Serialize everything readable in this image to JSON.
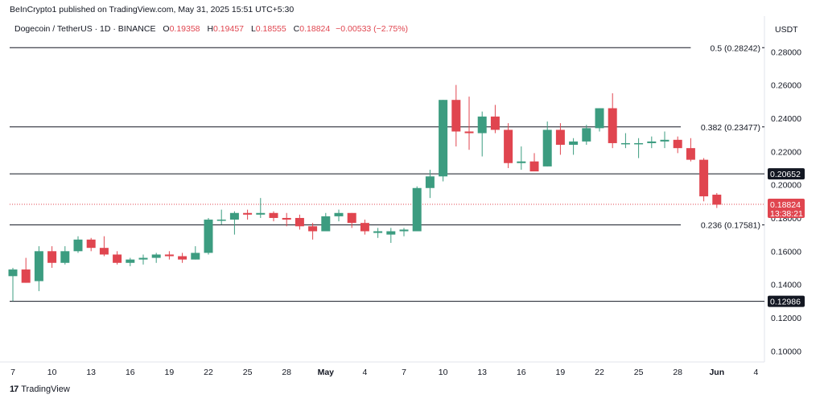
{
  "header": {
    "publisher": "BeInCrypto1 published on TradingView.com, May 31, 2025 15:51 UTC+5:30",
    "symbol": "Dogecoin / TetherUS · 1D · BINANCE",
    "o_label": "O",
    "o_value": "0.19358",
    "h_label": "H",
    "h_value": "0.19457",
    "l_label": "L",
    "l_value": "0.18555",
    "c_label": "C",
    "c_value": "0.18824",
    "change": "−0.00533 (−2.75%)",
    "currency": "USDT"
  },
  "footer": {
    "brand": "TradingView"
  },
  "colors": {
    "up": "#26a69a",
    "up_body": "#3c9c80",
    "down": "#e0454f",
    "line": "#131722",
    "price_line": "#e0454f"
  },
  "chart_data": {
    "type": "candlestick",
    "ylim": [
      0.09,
      0.29
    ],
    "y_ticks": [
      "0.28000",
      "0.26000",
      "0.24000",
      "0.22000",
      "0.20000",
      "0.18000",
      "0.16000",
      "0.14000",
      "0.12000",
      "0.10000"
    ],
    "y_tick_values": [
      0.28,
      0.26,
      0.24,
      0.22,
      0.2,
      0.18,
      0.16,
      0.14,
      0.12,
      0.1
    ],
    "x_tick_labels": [
      "7",
      "10",
      "13",
      "16",
      "19",
      "22",
      "25",
      "28",
      "May",
      "4",
      "7",
      "10",
      "13",
      "16",
      "19",
      "22",
      "25",
      "28",
      "Jun",
      "4"
    ],
    "x_tick_index": [
      0,
      3,
      6,
      9,
      12,
      15,
      18,
      21,
      24,
      27,
      30,
      33,
      36,
      39,
      42,
      45,
      48,
      51,
      54,
      57
    ],
    "fib_levels": [
      {
        "label": "0.5 (0.28242)",
        "value": 0.28242
      },
      {
        "label": "0.382 (0.23477)",
        "value": 0.23477
      },
      {
        "label": "0.236 (0.17581)",
        "value": 0.17581
      }
    ],
    "horizontal_lines": [
      {
        "label": "0.20652",
        "value": 0.20652
      },
      {
        "label": "0.12986",
        "value": 0.12986
      }
    ],
    "last_price": {
      "label": "0.18824",
      "countdown": "13:38:21",
      "value": 0.18824
    },
    "candles": [
      {
        "o": 0.145,
        "h": 0.15,
        "l": 0.13,
        "c": 0.149
      },
      {
        "o": 0.149,
        "h": 0.156,
        "l": 0.141,
        "c": 0.141
      },
      {
        "o": 0.142,
        "h": 0.163,
        "l": 0.136,
        "c": 0.16
      },
      {
        "o": 0.16,
        "h": 0.163,
        "l": 0.15,
        "c": 0.153
      },
      {
        "o": 0.153,
        "h": 0.163,
        "l": 0.152,
        "c": 0.16
      },
      {
        "o": 0.16,
        "h": 0.169,
        "l": 0.159,
        "c": 0.167
      },
      {
        "o": 0.167,
        "h": 0.168,
        "l": 0.16,
        "c": 0.162
      },
      {
        "o": 0.162,
        "h": 0.169,
        "l": 0.157,
        "c": 0.158
      },
      {
        "o": 0.158,
        "h": 0.16,
        "l": 0.152,
        "c": 0.153
      },
      {
        "o": 0.153,
        "h": 0.156,
        "l": 0.151,
        "c": 0.155
      },
      {
        "o": 0.155,
        "h": 0.158,
        "l": 0.152,
        "c": 0.156
      },
      {
        "o": 0.156,
        "h": 0.159,
        "l": 0.153,
        "c": 0.158
      },
      {
        "o": 0.158,
        "h": 0.16,
        "l": 0.155,
        "c": 0.157
      },
      {
        "o": 0.157,
        "h": 0.159,
        "l": 0.153,
        "c": 0.155
      },
      {
        "o": 0.155,
        "h": 0.163,
        "l": 0.155,
        "c": 0.159
      },
      {
        "o": 0.159,
        "h": 0.18,
        "l": 0.158,
        "c": 0.179
      },
      {
        "o": 0.179,
        "h": 0.185,
        "l": 0.176,
        "c": 0.179
      },
      {
        "o": 0.179,
        "h": 0.184,
        "l": 0.17,
        "c": 0.183
      },
      {
        "o": 0.183,
        "h": 0.185,
        "l": 0.179,
        "c": 0.182
      },
      {
        "o": 0.182,
        "h": 0.192,
        "l": 0.18,
        "c": 0.183
      },
      {
        "o": 0.183,
        "h": 0.184,
        "l": 0.178,
        "c": 0.18
      },
      {
        "o": 0.18,
        "h": 0.183,
        "l": 0.175,
        "c": 0.179
      },
      {
        "o": 0.18,
        "h": 0.182,
        "l": 0.173,
        "c": 0.175
      },
      {
        "o": 0.175,
        "h": 0.177,
        "l": 0.167,
        "c": 0.172
      },
      {
        "o": 0.172,
        "h": 0.183,
        "l": 0.172,
        "c": 0.181
      },
      {
        "o": 0.181,
        "h": 0.185,
        "l": 0.178,
        "c": 0.183
      },
      {
        "o": 0.183,
        "h": 0.183,
        "l": 0.174,
        "c": 0.177
      },
      {
        "o": 0.177,
        "h": 0.179,
        "l": 0.17,
        "c": 0.172
      },
      {
        "o": 0.171,
        "h": 0.174,
        "l": 0.168,
        "c": 0.172
      },
      {
        "o": 0.17,
        "h": 0.174,
        "l": 0.165,
        "c": 0.172
      },
      {
        "o": 0.172,
        "h": 0.174,
        "l": 0.169,
        "c": 0.173
      },
      {
        "o": 0.172,
        "h": 0.199,
        "l": 0.172,
        "c": 0.198
      },
      {
        "o": 0.198,
        "h": 0.209,
        "l": 0.192,
        "c": 0.205
      },
      {
        "o": 0.205,
        "h": 0.251,
        "l": 0.202,
        "c": 0.251
      },
      {
        "o": 0.251,
        "h": 0.26,
        "l": 0.223,
        "c": 0.232
      },
      {
        "o": 0.232,
        "h": 0.253,
        "l": 0.221,
        "c": 0.231
      },
      {
        "o": 0.231,
        "h": 0.244,
        "l": 0.217,
        "c": 0.241
      },
      {
        "o": 0.241,
        "h": 0.248,
        "l": 0.231,
        "c": 0.233
      },
      {
        "o": 0.233,
        "h": 0.237,
        "l": 0.21,
        "c": 0.213
      },
      {
        "o": 0.213,
        "h": 0.223,
        "l": 0.209,
        "c": 0.214
      },
      {
        "o": 0.214,
        "h": 0.219,
        "l": 0.209,
        "c": 0.208
      },
      {
        "o": 0.211,
        "h": 0.238,
        "l": 0.211,
        "c": 0.233
      },
      {
        "o": 0.233,
        "h": 0.237,
        "l": 0.218,
        "c": 0.224
      },
      {
        "o": 0.224,
        "h": 0.228,
        "l": 0.218,
        "c": 0.226
      },
      {
        "o": 0.226,
        "h": 0.236,
        "l": 0.224,
        "c": 0.234
      },
      {
        "o": 0.234,
        "h": 0.246,
        "l": 0.232,
        "c": 0.246
      },
      {
        "o": 0.246,
        "h": 0.255,
        "l": 0.222,
        "c": 0.225
      },
      {
        "o": 0.225,
        "h": 0.231,
        "l": 0.222,
        "c": 0.225
      },
      {
        "o": 0.225,
        "h": 0.228,
        "l": 0.216,
        "c": 0.225
      },
      {
        "o": 0.225,
        "h": 0.229,
        "l": 0.222,
        "c": 0.226
      },
      {
        "o": 0.226,
        "h": 0.232,
        "l": 0.222,
        "c": 0.227
      },
      {
        "o": 0.227,
        "h": 0.229,
        "l": 0.219,
        "c": 0.222
      },
      {
        "o": 0.222,
        "h": 0.228,
        "l": 0.214,
        "c": 0.215
      },
      {
        "o": 0.215,
        "h": 0.216,
        "l": 0.19,
        "c": 0.193
      },
      {
        "o": 0.194,
        "h": 0.195,
        "l": 0.186,
        "c": 0.188
      }
    ]
  }
}
